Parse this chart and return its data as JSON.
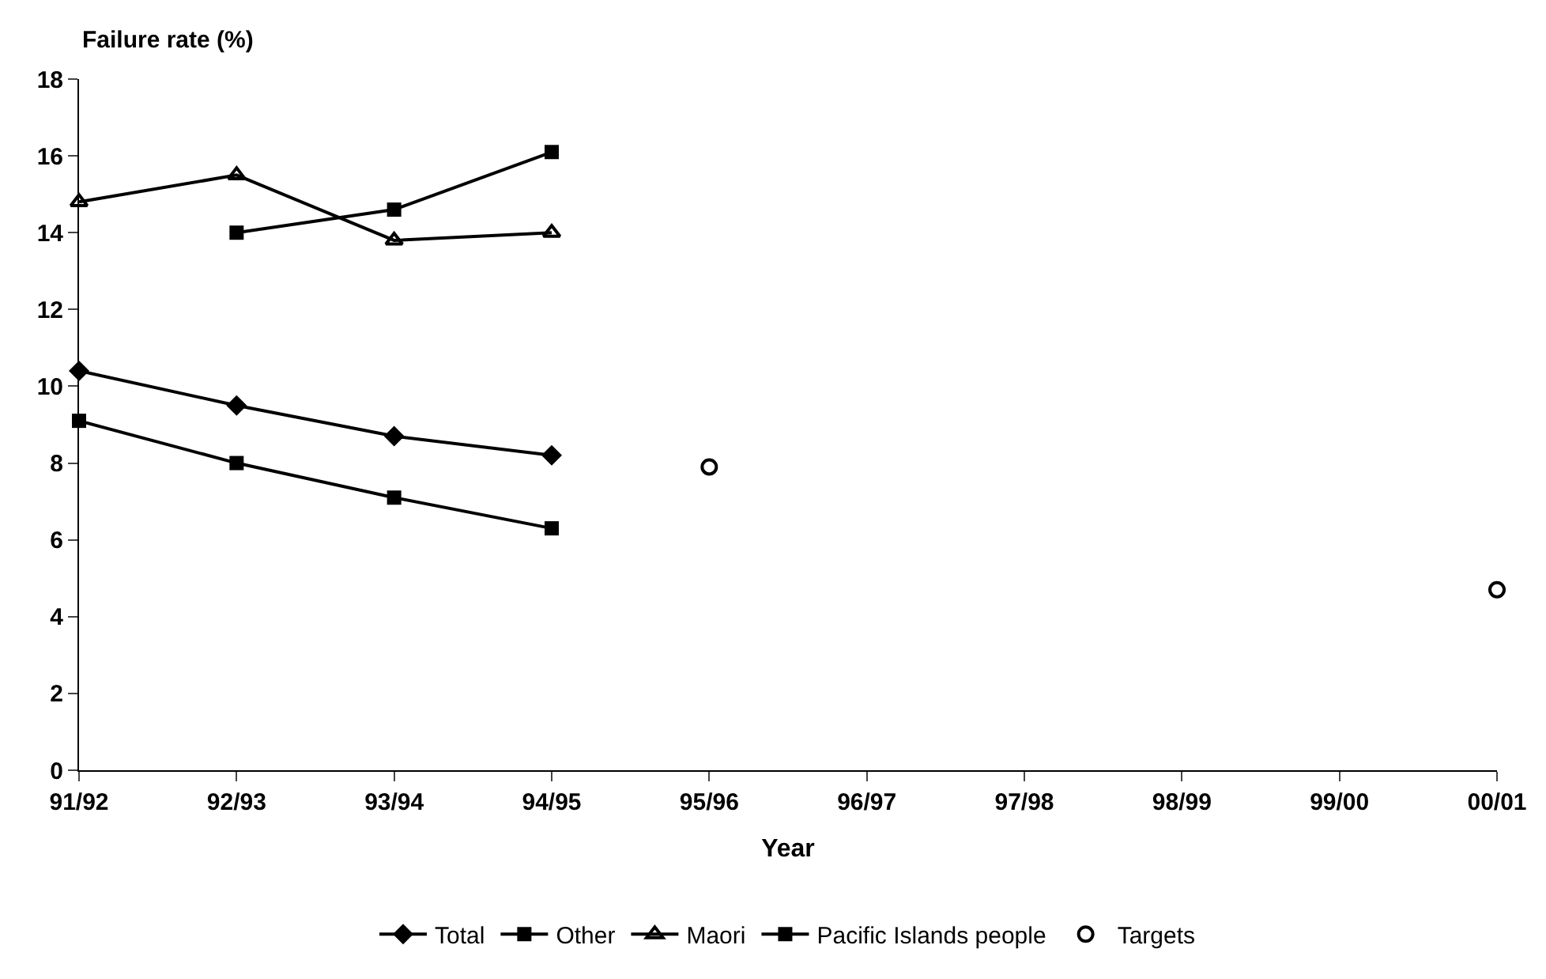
{
  "chart_data": {
    "type": "line",
    "ylabel": "Failure rate (%)",
    "xlabel": "Year",
    "categories": [
      "91/92",
      "92/93",
      "93/94",
      "94/95",
      "95/96",
      "96/97",
      "97/98",
      "98/99",
      "99/00",
      "00/01"
    ],
    "series": [
      {
        "name": "Total",
        "color": "#000000",
        "marker": "diamond",
        "values": [
          10.4,
          9.5,
          8.7,
          8.2,
          null,
          null,
          null,
          null,
          null,
          null
        ]
      },
      {
        "name": "Other",
        "color": "#000000",
        "marker": "square",
        "values": [
          9.1,
          8.0,
          7.1,
          6.3,
          null,
          null,
          null,
          null,
          null,
          null
        ]
      },
      {
        "name": "Maori",
        "color": "#000000",
        "marker": "triangle",
        "values": [
          14.8,
          15.5,
          13.8,
          14.0,
          null,
          null,
          null,
          null,
          null,
          null
        ]
      },
      {
        "name": "Pacific Islands people",
        "color": "#000000",
        "marker": "square",
        "values": [
          null,
          14.0,
          14.6,
          16.1,
          null,
          null,
          null,
          null,
          null,
          null
        ]
      },
      {
        "name": "Targets",
        "type": "scatter",
        "color": "#000000",
        "marker": "circle",
        "values": [
          null,
          null,
          null,
          null,
          7.9,
          null,
          null,
          null,
          null,
          4.7
        ]
      }
    ],
    "ylim": [
      0,
      18
    ],
    "yticks": [
      0,
      2,
      4,
      6,
      8,
      10,
      12,
      14,
      16,
      18
    ],
    "legend": "bottom",
    "line_style": "solid"
  }
}
